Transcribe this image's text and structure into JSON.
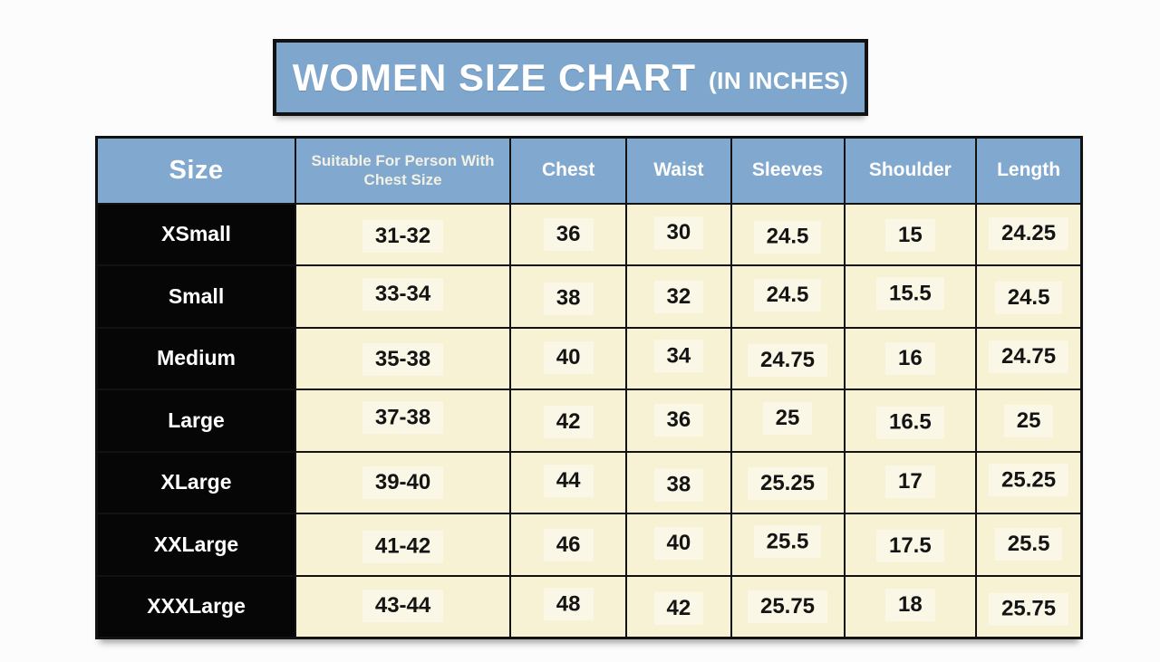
{
  "title": {
    "main": "WOMEN SIZE CHART",
    "suffix": "(IN INCHES)"
  },
  "colors": {
    "banner_blue": "#7FA7CD",
    "header_blue": "#81A8CE",
    "cell_cream": "#F8F2D5",
    "cell_patch": "#FBF7E6",
    "row_label_bg": "#060606",
    "border_black": "#121212",
    "page_bg": "#FCFCFC",
    "text_dark": "#141414",
    "text_light": "#FFFFFF"
  },
  "chart_data": {
    "type": "table",
    "title": "WOMEN SIZE CHART (IN INCHES)",
    "units": "inches",
    "columns": [
      {
        "key": "size",
        "label": "Size",
        "width_pct": 20.2
      },
      {
        "key": "suitable-chest-size",
        "label": "Suitable For Person With Chest Size",
        "width_pct": 21.8
      },
      {
        "key": "chest",
        "label": "Chest",
        "width_pct": 11.8
      },
      {
        "key": "waist",
        "label": "Waist",
        "width_pct": 10.6
      },
      {
        "key": "sleeves",
        "label": "Sleeves",
        "width_pct": 11.5
      },
      {
        "key": "shoulder",
        "label": "Shoulder",
        "width_pct": 13.4
      },
      {
        "key": "length",
        "label": "Length",
        "width_pct": 10.7
      }
    ],
    "rows": [
      [
        "XSmall",
        "31-32",
        "36",
        "30",
        "24.5",
        "15",
        "24.25"
      ],
      [
        "Small",
        "33-34",
        "38",
        "32",
        "24.5",
        "15.5",
        "24.5"
      ],
      [
        "Medium",
        "35-38",
        "40",
        "34",
        "24.75",
        "16",
        "24.75"
      ],
      [
        "Large",
        "37-38",
        "42",
        "36",
        "25",
        "16.5",
        "25"
      ],
      [
        "XLarge",
        "39-40",
        "44",
        "38",
        "25.25",
        "17",
        "25.25"
      ],
      [
        "XXLarge",
        "41-42",
        "46",
        "40",
        "25.5",
        "17.5",
        "25.5"
      ],
      [
        "XXXLarge",
        "43-44",
        "48",
        "42",
        "25.75",
        "18",
        "25.75"
      ]
    ]
  }
}
